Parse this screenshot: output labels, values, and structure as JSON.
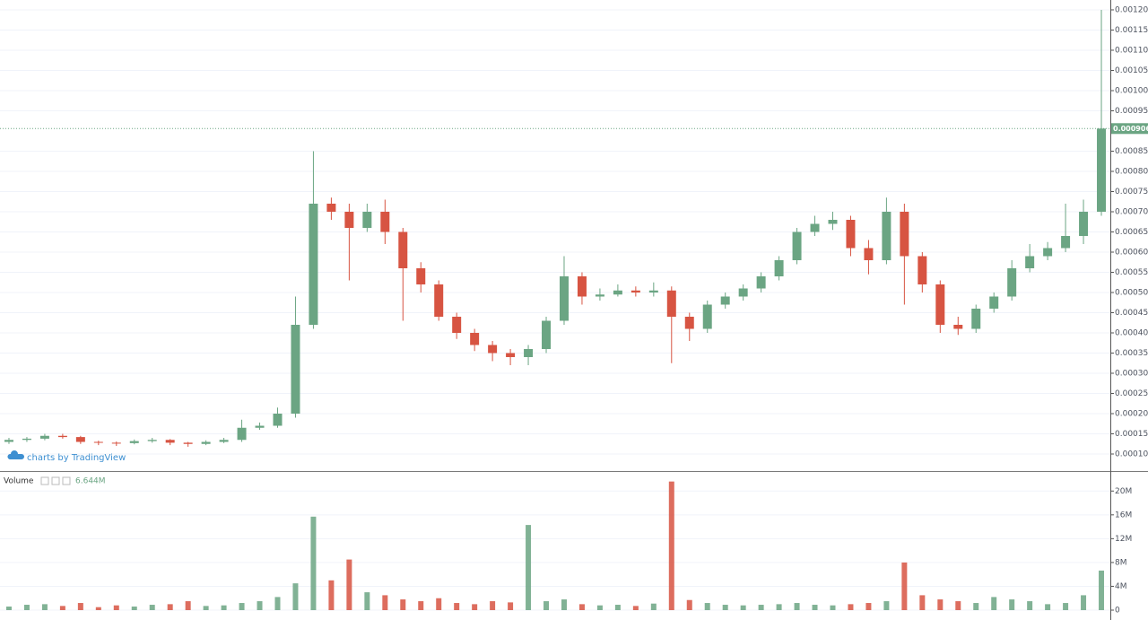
{
  "chart_data": {
    "type": "candlestick",
    "up_color": "#6ba583",
    "down_color": "#d75442",
    "grid": true,
    "watermark": "charts by TradingView",
    "last_price": 0.000906,
    "last_price_color": "#6ba583",
    "ylim": [
      5.78e-05,
      0.0012244
    ],
    "yticks": [
      {
        "value": 0.0001,
        "label": "0.000100"
      },
      {
        "value": 0.00015,
        "label": "0.000150"
      },
      {
        "value": 0.0002,
        "label": "0.000200"
      },
      {
        "value": 0.00025,
        "label": "0.000250"
      },
      {
        "value": 0.0003,
        "label": "0.000300"
      },
      {
        "value": 0.00035,
        "label": "0.000350"
      },
      {
        "value": 0.0004,
        "label": "0.000400"
      },
      {
        "value": 0.00045,
        "label": "0.000450"
      },
      {
        "value": 0.0005,
        "label": "0.000500"
      },
      {
        "value": 0.00055,
        "label": "0.000550"
      },
      {
        "value": 0.0006,
        "label": "0.000600"
      },
      {
        "value": 0.00065,
        "label": "0.000650"
      },
      {
        "value": 0.0007,
        "label": "0.000700"
      },
      {
        "value": 0.00075,
        "label": "0.000750"
      },
      {
        "value": 0.0008,
        "label": "0.000800"
      },
      {
        "value": 0.00085,
        "label": "0.000850"
      },
      {
        "value": 0.00095,
        "label": "0.000950"
      },
      {
        "value": 0.001,
        "label": "0.001000"
      },
      {
        "value": 0.00105,
        "label": "0.001050"
      },
      {
        "value": 0.0011,
        "label": "0.001100"
      },
      {
        "value": 0.00115,
        "label": "0.001150"
      },
      {
        "value": 0.0012,
        "label": "0.001200"
      }
    ],
    "open": [
      0.00013,
      0.000135,
      0.000138,
      0.000145,
      0.000142,
      0.00013,
      0.000128,
      0.000127,
      0.000132,
      0.000135,
      0.000128,
      0.000125,
      0.00013,
      0.000135,
      0.000165,
      0.00017,
      0.0002,
      0.00042,
      0.00072,
      0.0007,
      0.00066,
      0.0007,
      0.00065,
      0.00056,
      0.00052,
      0.00044,
      0.0004,
      0.00037,
      0.00035,
      0.00034,
      0.00036,
      0.00043,
      0.00054,
      0.00049,
      0.000495,
      0.000505,
      0.0005,
      0.000505,
      0.00044,
      0.00041,
      0.00047,
      0.00049,
      0.00051,
      0.00054,
      0.00058,
      0.00065,
      0.00067,
      0.00068,
      0.00061,
      0.00058,
      0.0007,
      0.00059,
      0.00052,
      0.00042,
      0.00041,
      0.00046,
      0.00049,
      0.00056,
      0.00059,
      0.00061,
      0.00064,
      0.0007
    ],
    "high": [
      0.00014,
      0.000142,
      0.00015,
      0.00015,
      0.000145,
      0.000133,
      0.000131,
      0.000136,
      0.00014,
      0.000137,
      0.00013,
      0.000134,
      0.00014,
      0.000185,
      0.000178,
      0.000215,
      0.00049,
      0.00085,
      0.000735,
      0.00072,
      0.00072,
      0.00073,
      0.00066,
      0.000575,
      0.00053,
      0.00045,
      0.00041,
      0.00038,
      0.00036,
      0.00037,
      0.00044,
      0.00059,
      0.00055,
      0.00051,
      0.00052,
      0.000515,
      0.000525,
      0.000515,
      0.00045,
      0.00048,
      0.0005,
      0.00052,
      0.00055,
      0.00059,
      0.00066,
      0.00069,
      0.0007,
      0.00069,
      0.00063,
      0.000735,
      0.00072,
      0.0006,
      0.00053,
      0.00044,
      0.00047,
      0.0005,
      0.00058,
      0.00062,
      0.000625,
      0.00072,
      0.00073,
      0.0012
    ],
    "low": [
      0.000125,
      0.00013,
      0.000134,
      0.000138,
      0.000125,
      0.000122,
      0.00012,
      0.000124,
      0.000128,
      0.000122,
      0.000118,
      0.000122,
      0.000127,
      0.00013,
      0.00016,
      0.000165,
      0.00019,
      0.00041,
      0.00068,
      0.00053,
      0.00065,
      0.00062,
      0.00043,
      0.0005,
      0.00043,
      0.000385,
      0.000355,
      0.00033,
      0.00032,
      0.00032,
      0.00035,
      0.00042,
      0.00047,
      0.00048,
      0.00049,
      0.00049,
      0.00049,
      0.000325,
      0.00038,
      0.0004,
      0.00046,
      0.00048,
      0.0005,
      0.00053,
      0.00057,
      0.00064,
      0.000655,
      0.00059,
      0.000545,
      0.00057,
      0.00047,
      0.0005,
      0.0004,
      0.000395,
      0.0004,
      0.00045,
      0.00048,
      0.00055,
      0.00058,
      0.0006,
      0.00062,
      0.00069
    ],
    "close": [
      0.000135,
      0.000138,
      0.000145,
      0.000142,
      0.00013,
      0.000128,
      0.000127,
      0.000132,
      0.000135,
      0.000128,
      0.000125,
      0.00013,
      0.000135,
      0.000165,
      0.00017,
      0.0002,
      0.00042,
      0.00072,
      0.0007,
      0.00066,
      0.0007,
      0.00065,
      0.00056,
      0.00052,
      0.00044,
      0.0004,
      0.00037,
      0.00035,
      0.00034,
      0.00036,
      0.00043,
      0.00054,
      0.00049,
      0.000495,
      0.000505,
      0.0005,
      0.000505,
      0.00044,
      0.00041,
      0.00047,
      0.00049,
      0.00051,
      0.00054,
      0.00058,
      0.00065,
      0.00067,
      0.00068,
      0.00061,
      0.00058,
      0.0007,
      0.00059,
      0.00052,
      0.00042,
      0.00041,
      0.00046,
      0.00049,
      0.00056,
      0.00059,
      0.00061,
      0.00064,
      0.0007,
      0.000906
    ],
    "volume": {
      "name": "Volume",
      "ylim": [
        0,
        22000000
      ],
      "yticks": [
        0,
        {
          "value": 4000000,
          "label": "4M"
        },
        {
          "value": 8000000,
          "label": "8M"
        },
        {
          "value": 12000000,
          "label": "12M"
        },
        {
          "value": 16000000,
          "label": "16M"
        },
        {
          "value": 20000000,
          "label": "20M"
        }
      ],
      "values": [
        600000,
        900000,
        1000000,
        700000,
        1200000,
        500000,
        800000,
        600000,
        900000,
        1000000,
        1500000,
        700000,
        800000,
        1200000,
        1500000,
        2200000,
        4500000,
        15700000,
        5000000,
        8500000,
        3000000,
        2500000,
        1800000,
        1500000,
        2000000,
        1200000,
        1000000,
        1500000,
        1300000,
        14300000,
        1500000,
        1800000,
        1000000,
        800000,
        900000,
        700000,
        1100000,
        21600000,
        1700000,
        1200000,
        900000,
        800000,
        900000,
        1000000,
        1200000,
        900000,
        800000,
        1000000,
        1200000,
        1500000,
        8000000,
        2500000,
        1800000,
        1500000,
        1200000,
        2200000,
        1800000,
        1500000,
        1000000,
        1200000,
        2500000,
        6644000
      ],
      "value_labels": [
        null,
        null,
        null,
        null,
        null,
        null,
        null,
        null,
        null,
        null,
        null,
        null,
        null,
        null,
        null,
        null,
        null,
        null,
        null,
        null,
        null,
        null,
        null,
        null,
        null,
        null,
        null,
        null,
        null,
        null,
        null,
        null,
        null,
        null,
        null,
        null,
        null,
        null,
        null,
        null,
        null,
        null,
        null,
        null,
        null,
        null,
        null,
        null,
        null,
        null,
        null,
        null,
        null,
        null,
        null,
        null,
        null,
        null,
        null,
        null,
        null,
        "6.644M"
      ]
    }
  }
}
